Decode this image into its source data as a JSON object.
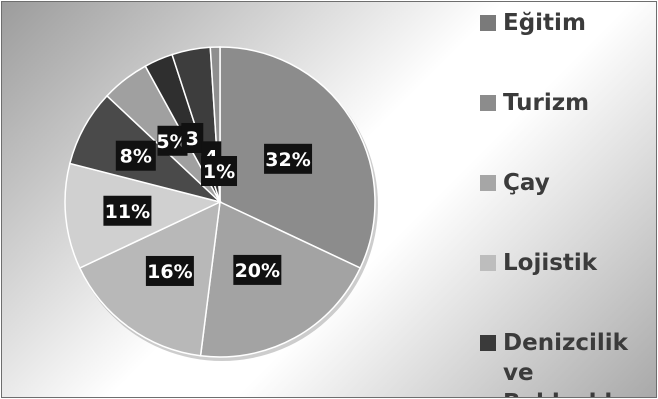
{
  "chart_data": {
    "type": "pie",
    "values": [
      32,
      20,
      16,
      11,
      8,
      5,
      3,
      4,
      1
    ],
    "data_labels": [
      "32%",
      "20%",
      "16%",
      "11%",
      "8%",
      "5%",
      "3",
      "4",
      "1%"
    ],
    "slice_colors": [
      "#8c8c8c",
      "#a3a3a3",
      "#b8b8b8",
      "#d0d0d0",
      "#4a4a4a",
      "#a0a0a0",
      "#2f2f2f",
      "#3d3d3d",
      "#8f8f8f"
    ],
    "legend": [
      {
        "label": "Eğitim",
        "color": "#7a7a7a"
      },
      {
        "label": "Turizm",
        "color": "#8c8c8c"
      },
      {
        "label": "Çay",
        "color": "#a6a6a6"
      },
      {
        "label": "Lojistik",
        "color": "#bdbdbd"
      },
      {
        "label": "Denizcilik\nve Balıkçılık",
        "color": "#3a3a3a"
      }
    ],
    "legend_position": "right"
  }
}
